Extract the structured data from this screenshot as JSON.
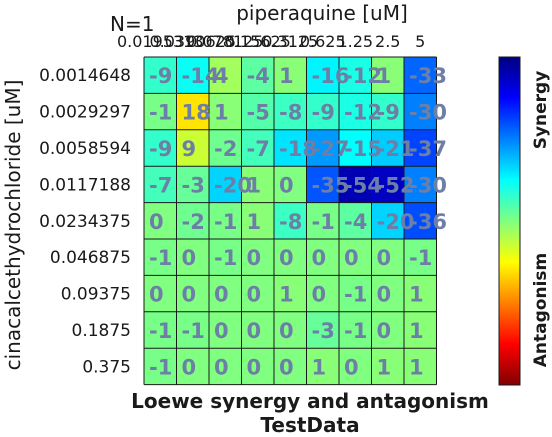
{
  "chart_data": {
    "type": "heatmap",
    "annotation": "N=1",
    "xlabel": "piperaquine [uM]",
    "ylabel": "cinacalcethydrochloride [uM]",
    "title": "Loewe synergy and antagonism",
    "subtitle": "TestData",
    "x_categories": [
      "0.0195313",
      "0.0390625",
      "0.078125",
      "0.15625",
      "0.3125",
      "0.625",
      "1.25",
      "2.5",
      "5"
    ],
    "y_categories": [
      "0.0014648",
      "0.0029297",
      "0.0058594",
      "0.0117188",
      "0.0234375",
      "0.046875",
      "0.09375",
      "0.1875",
      "0.375"
    ],
    "values": [
      [
        -9,
        -14,
        4,
        -4,
        1,
        -16,
        -12,
        1,
        -33
      ],
      [
        -1,
        18,
        1,
        -5,
        -8,
        -9,
        -12,
        -9,
        -30
      ],
      [
        -9,
        9,
        -2,
        -7,
        -18,
        -27,
        -15,
        -21,
        -37
      ],
      [
        -7,
        -3,
        -20,
        1,
        0,
        -35,
        -54,
        -52,
        -30
      ],
      [
        0,
        -2,
        -1,
        1,
        -8,
        -1,
        -4,
        -20,
        -36
      ],
      [
        -1,
        0,
        -1,
        0,
        0,
        0,
        0,
        0,
        -1
      ],
      [
        0,
        0,
        0,
        0,
        1,
        0,
        -1,
        0,
        1
      ],
      [
        -1,
        -1,
        0,
        0,
        0,
        -3,
        -1,
        0,
        1
      ],
      [
        -1,
        0,
        0,
        0,
        0,
        1,
        0,
        1,
        1
      ]
    ],
    "colorscale": "jet",
    "color_range": [
      -60,
      60
    ],
    "colorbar_labels": {
      "top": "Synergy",
      "bottom": "Antagonism"
    },
    "colors": {
      "cell_text": "#6d7fa6",
      "grid": "#1a1a1a"
    }
  }
}
